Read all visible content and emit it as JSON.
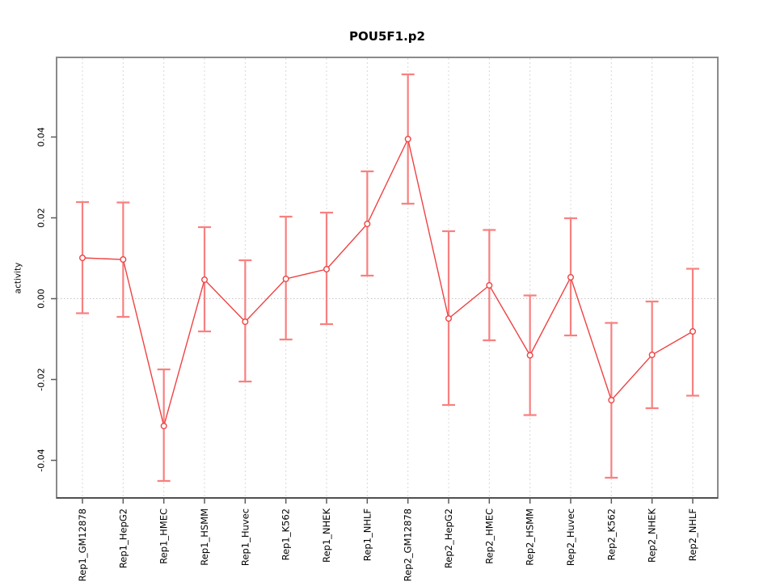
{
  "figure": {
    "background": "#ffffff"
  },
  "chart_data": {
    "type": "line",
    "title": "POU5F1.p2",
    "ylabel": "activity",
    "xlabel": "",
    "categories": [
      "Rep1_GM12878",
      "Rep1_HepG2",
      "Rep1_HMEC",
      "Rep1_HSMM",
      "Rep1_Huvec",
      "Rep1_K562",
      "Rep1_NHEK",
      "Rep1_NHLF",
      "Rep2_GM12878",
      "Rep2_HepG2",
      "Rep2_HMEC",
      "Rep2_HSMM",
      "Rep2_Huvec",
      "Rep2_K562",
      "Rep2_NHEK",
      "Rep2_NHLF"
    ],
    "series": [
      {
        "name": "activity",
        "values": [
          0.0101,
          0.0097,
          -0.0315,
          0.0047,
          -0.0057,
          0.0049,
          0.0073,
          0.0185,
          0.0395,
          -0.0049,
          0.0033,
          -0.014,
          0.0053,
          -0.0251,
          -0.0139,
          -0.0081
        ],
        "upper": [
          0.0239,
          0.0238,
          -0.0175,
          0.0177,
          0.0095,
          0.0203,
          0.0213,
          0.0315,
          0.0555,
          0.0167,
          0.017,
          0.0008,
          0.0199,
          -0.006,
          -0.0007,
          0.0074
        ],
        "lower": [
          -0.0036,
          -0.0045,
          -0.0451,
          -0.0081,
          -0.0205,
          -0.0101,
          -0.0063,
          0.0057,
          0.0235,
          -0.0263,
          -0.0103,
          -0.0288,
          -0.0091,
          -0.0443,
          -0.0271,
          -0.024
        ]
      }
    ],
    "ylim": [
      -0.0493,
      0.0597
    ],
    "yticks": [
      -0.04,
      -0.02,
      0,
      0.02,
      0.04
    ],
    "ytick_labels": [
      "-0.04",
      "-0.02",
      "0.00",
      "0.02",
      "0.04"
    ],
    "grid": {
      "vertical_at_categories": true,
      "horizontal_zero_line": true,
      "style": "dotted",
      "legend_position": "none"
    },
    "legend": null,
    "colors": {
      "error_bar": "#F88080",
      "line": "#EE4343",
      "point": "#EE4343",
      "grid_line": "#D8D8D8",
      "zero_line": "#C4C4C4",
      "plot_border": "#8A8A8A",
      "axis_tick": "#5A5A5A",
      "text": "#000000"
    }
  }
}
